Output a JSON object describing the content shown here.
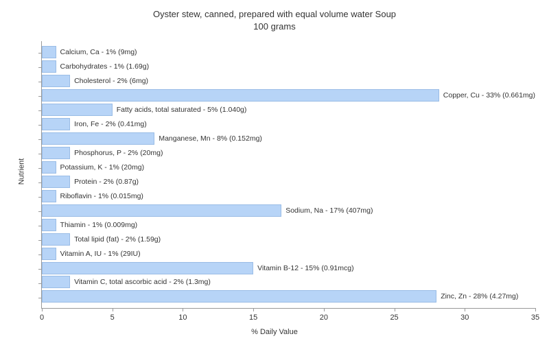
{
  "chart": {
    "type": "bar-horizontal",
    "title_line1": "Oyster stew, canned, prepared with equal volume water Soup",
    "title_line2": "100 grams",
    "title_fontsize": 13,
    "y_axis_title": "Nutrient",
    "x_axis_title": "% Daily Value",
    "axis_title_fontsize": 11,
    "label_fontsize": 10.5,
    "xlim_min": 0,
    "xlim_max": 35,
    "xtick_step": 5,
    "xticks": [
      0,
      5,
      10,
      15,
      20,
      25,
      30,
      35
    ],
    "bar_fill": "#b7d4f7",
    "bar_border": "#99bce6",
    "background_color": "#ffffff",
    "axis_color": "#999999",
    "text_color": "#333333",
    "items": [
      {
        "label": "Calcium, Ca - 1% (9mg)",
        "value": 1
      },
      {
        "label": "Carbohydrates - 1% (1.69g)",
        "value": 1
      },
      {
        "label": "Cholesterol - 2% (6mg)",
        "value": 2
      },
      {
        "label": "Copper, Cu - 33% (0.661mg)",
        "value": 33
      },
      {
        "label": "Fatty acids, total saturated - 5% (1.040g)",
        "value": 5
      },
      {
        "label": "Iron, Fe - 2% (0.41mg)",
        "value": 2
      },
      {
        "label": "Manganese, Mn - 8% (0.152mg)",
        "value": 8
      },
      {
        "label": "Phosphorus, P - 2% (20mg)",
        "value": 2
      },
      {
        "label": "Potassium, K - 1% (20mg)",
        "value": 1
      },
      {
        "label": "Protein - 2% (0.87g)",
        "value": 2
      },
      {
        "label": "Riboflavin - 1% (0.015mg)",
        "value": 1
      },
      {
        "label": "Sodium, Na - 17% (407mg)",
        "value": 17
      },
      {
        "label": "Thiamin - 1% (0.009mg)",
        "value": 1
      },
      {
        "label": "Total lipid (fat) - 2% (1.59g)",
        "value": 2
      },
      {
        "label": "Vitamin A, IU - 1% (29IU)",
        "value": 1
      },
      {
        "label": "Vitamin B-12 - 15% (0.91mcg)",
        "value": 15
      },
      {
        "label": "Vitamin C, total ascorbic acid - 2% (1.3mg)",
        "value": 2
      },
      {
        "label": "Zinc, Zn - 28% (4.27mg)",
        "value": 28
      }
    ]
  }
}
